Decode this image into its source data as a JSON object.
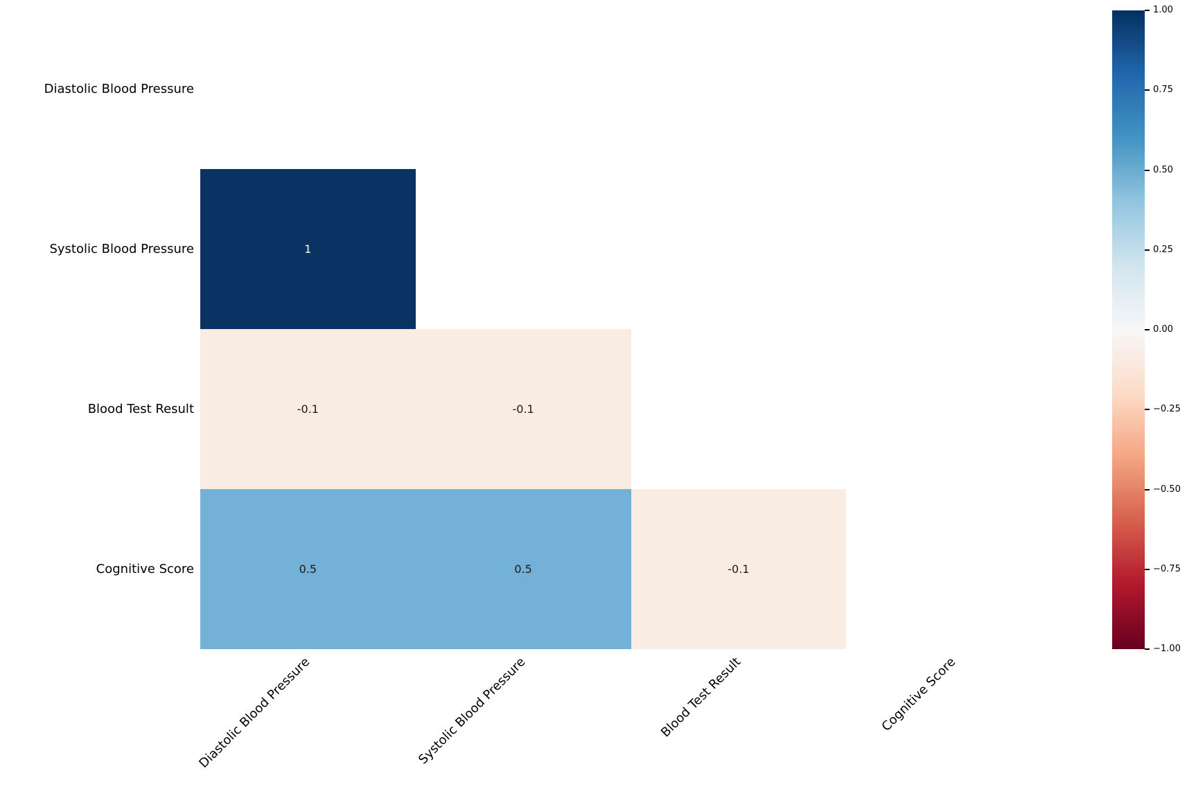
{
  "chart_data": {
    "type": "heatmap",
    "title": "",
    "xlabel": "",
    "ylabel": "",
    "row_labels": [
      "Diastolic Blood Pressure",
      "Systolic Blood Pressure",
      "Blood Test Result",
      "Cognitive Score"
    ],
    "col_labels": [
      "Diastolic Blood Pressure",
      "Systolic Blood Pressure",
      "Blood Test Result",
      "Cognitive Score"
    ],
    "matrix": [
      [
        null,
        null,
        null,
        null
      ],
      [
        1,
        null,
        null,
        null
      ],
      [
        -0.1,
        -0.1,
        null,
        null
      ],
      [
        0.5,
        0.5,
        -0.1,
        null
      ]
    ],
    "mask": "upper triangle and diagonal hidden",
    "colormap": "RdBu",
    "vmin": -1,
    "vmax": 1,
    "grid": "off",
    "cells": [
      {
        "row": 1,
        "col": 0,
        "value": 1,
        "label": "1",
        "bg": "#0a3263",
        "fg": "#ffffff"
      },
      {
        "row": 2,
        "col": 0,
        "value": -0.1,
        "label": "-0.1",
        "bg": "#f8ece3",
        "fg": "#1a1a1a"
      },
      {
        "row": 2,
        "col": 1,
        "value": -0.1,
        "label": "-0.1",
        "bg": "#f8ece3",
        "fg": "#1a1a1a"
      },
      {
        "row": 3,
        "col": 0,
        "value": 0.5,
        "label": "0.5",
        "bg": "#74b1d6",
        "fg": "#1a1a1a"
      },
      {
        "row": 3,
        "col": 1,
        "value": 0.5,
        "label": "0.5",
        "bg": "#74b1d6",
        "fg": "#1a1a1a"
      },
      {
        "row": 3,
        "col": 2,
        "value": -0.1,
        "label": "-0.1",
        "bg": "#f8ece3",
        "fg": "#1a1a1a"
      }
    ],
    "colorbar": {
      "position": "right",
      "tick_labels": [
        "1.00",
        "0.75",
        "0.50",
        "0.25",
        "0.00",
        "−0.25",
        "−0.50",
        "−0.75",
        "−1.00"
      ],
      "tick_values": [
        1.0,
        0.75,
        0.5,
        0.25,
        0.0,
        -0.25,
        -0.5,
        -0.75,
        -1.0
      ],
      "gradient_top_to_bottom": [
        "#053061",
        "#2166ac",
        "#4393c3",
        "#92c5de",
        "#d1e5f0",
        "#f7f7f7",
        "#fddbc7",
        "#f4a582",
        "#d6604d",
        "#b2182b",
        "#67001f"
      ]
    }
  }
}
